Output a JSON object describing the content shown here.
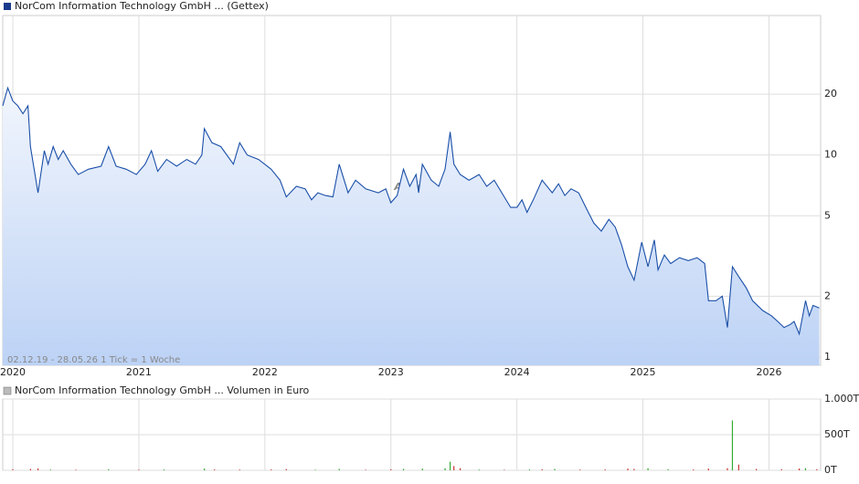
{
  "chart_data": [
    {
      "type": "line",
      "title": "NorCom Information Technology GmbH ... (Gettex)",
      "color": "#1a4fa8",
      "note": "02.12.19 - 28.05.26   1 Tick = 1 Woche",
      "watermark": "ARIVA",
      "log_scale": true,
      "grid": true,
      "xlim": [
        2019.92,
        2026.41
      ],
      "xticks": [
        2020,
        2021,
        2022,
        2023,
        2024,
        2025,
        2026
      ],
      "ylim": [
        0.91,
        49
      ],
      "yticks": [
        1,
        2,
        5,
        10,
        20
      ],
      "x": [
        2019.92,
        2019.96,
        2020.0,
        2020.04,
        2020.08,
        2020.12,
        2020.14,
        2020.2,
        2020.25,
        2020.28,
        2020.32,
        2020.36,
        2020.4,
        2020.46,
        2020.52,
        2020.6,
        2020.7,
        2020.76,
        2020.82,
        2020.9,
        2020.98,
        2021.05,
        2021.1,
        2021.15,
        2021.22,
        2021.3,
        2021.38,
        2021.45,
        2021.5,
        2021.52,
        2021.58,
        2021.65,
        2021.75,
        2021.8,
        2021.86,
        2021.95,
        2022.05,
        2022.12,
        2022.17,
        2022.25,
        2022.32,
        2022.37,
        2022.42,
        2022.48,
        2022.54,
        2022.59,
        2022.66,
        2022.72,
        2022.8,
        2022.9,
        2022.96,
        2023.0,
        2023.05,
        2023.1,
        2023.15,
        2023.2,
        2023.22,
        2023.25,
        2023.32,
        2023.38,
        2023.43,
        2023.47,
        2023.5,
        2023.55,
        2023.62,
        2023.7,
        2023.76,
        2023.82,
        2023.88,
        2023.95,
        2024.0,
        2024.04,
        2024.08,
        2024.13,
        2024.2,
        2024.28,
        2024.33,
        2024.38,
        2024.43,
        2024.49,
        2024.56,
        2024.61,
        2024.67,
        2024.73,
        2024.78,
        2024.83,
        2024.88,
        2024.93,
        2024.99,
        2025.04,
        2025.09,
        2025.12,
        2025.17,
        2025.22,
        2025.29,
        2025.36,
        2025.43,
        2025.49,
        2025.52,
        2025.58,
        2025.63,
        2025.67,
        2025.71,
        2025.76,
        2025.82,
        2025.87,
        2025.95,
        2026.02,
        2026.07,
        2026.12,
        2026.17,
        2026.2,
        2026.24,
        2026.29,
        2026.32,
        2026.35,
        2026.4
      ],
      "values": [
        17.5,
        21.5,
        18.5,
        17.5,
        16,
        17.5,
        11,
        6.5,
        10.5,
        9,
        11,
        9.5,
        10.5,
        9,
        8,
        8.5,
        8.8,
        11,
        8.8,
        8.5,
        8,
        9,
        10.5,
        8.3,
        9.5,
        8.8,
        9.5,
        9,
        10,
        13.5,
        11.5,
        11,
        9,
        11.5,
        10,
        9.5,
        8.5,
        7.5,
        6.2,
        7,
        6.8,
        6,
        6.5,
        6.3,
        6.2,
        9,
        6.5,
        7.5,
        6.8,
        6.5,
        6.8,
        5.8,
        6.3,
        8.5,
        7,
        8,
        6.5,
        9,
        7.5,
        7,
        8.5,
        13,
        9,
        8,
        7.5,
        8,
        7,
        7.5,
        6.5,
        5.5,
        5.5,
        6,
        5.2,
        6,
        7.5,
        6.5,
        7.2,
        6.3,
        6.8,
        6.5,
        5.3,
        4.6,
        4.2,
        4.8,
        4.4,
        3.6,
        2.8,
        2.4,
        3.7,
        2.8,
        3.8,
        2.7,
        3.2,
        2.9,
        3.1,
        3.0,
        3.1,
        2.9,
        1.9,
        1.9,
        2.0,
        1.4,
        2.8,
        2.5,
        2.2,
        1.9,
        1.7,
        1.6,
        1.5,
        1.4,
        1.45,
        1.5,
        1.3,
        1.9,
        1.6,
        1.8,
        1.75
      ]
    },
    {
      "type": "bar",
      "title": "NorCom Information Technology GmbH ... Volumen in Euro",
      "xlim": [
        2019.92,
        2026.41
      ],
      "xticks": [
        2020,
        2021,
        2022,
        2023,
        2024,
        2025,
        2026
      ],
      "ylim": [
        0,
        1000
      ],
      "yticks": [
        {
          "value": 1000,
          "label": "1.000T"
        },
        {
          "value": 500,
          "label": "500T"
        },
        {
          "value": 0,
          "label": "0T"
        }
      ],
      "grid": true,
      "x": [
        2020.0,
        2020.14,
        2020.2,
        2020.3,
        2020.5,
        2020.76,
        2021.0,
        2021.2,
        2021.52,
        2021.6,
        2021.8,
        2022.05,
        2022.17,
        2022.4,
        2022.59,
        2022.8,
        2023.0,
        2023.1,
        2023.25,
        2023.43,
        2023.47,
        2023.5,
        2023.55,
        2023.7,
        2023.9,
        2024.1,
        2024.2,
        2024.3,
        2024.5,
        2024.7,
        2024.88,
        2024.93,
        2025.04,
        2025.2,
        2025.4,
        2025.52,
        2025.67,
        2025.71,
        2025.76,
        2025.9,
        2026.1,
        2026.24,
        2026.29,
        2026.38
      ],
      "values": [
        15,
        20,
        25,
        10,
        8,
        15,
        10,
        12,
        25,
        12,
        10,
        12,
        18,
        8,
        20,
        8,
        15,
        20,
        25,
        30,
        120,
        60,
        30,
        10,
        8,
        12,
        15,
        20,
        10,
        12,
        25,
        20,
        30,
        15,
        12,
        25,
        30,
        700,
        80,
        20,
        15,
        25,
        30,
        15
      ],
      "colors": [
        "#c33",
        "#c33",
        "#c33",
        "#3a3",
        "#c33",
        "#3a3",
        "#c33",
        "#3a3",
        "#3a3",
        "#c33",
        "#c33",
        "#c33",
        "#c33",
        "#3a3",
        "#3a3",
        "#c33",
        "#c33",
        "#3a3",
        "#3a3",
        "#3a3",
        "#3a3",
        "#c33",
        "#c33",
        "#3a3",
        "#c33",
        "#3a3",
        "#c33",
        "#3a3",
        "#c33",
        "#c33",
        "#c33",
        "#c33",
        "#3a3",
        "#3a3",
        "#c33",
        "#c33",
        "#c33",
        "#3a3",
        "#c33",
        "#c33",
        "#c33",
        "#c33",
        "#3a3",
        "#c33"
      ]
    }
  ]
}
